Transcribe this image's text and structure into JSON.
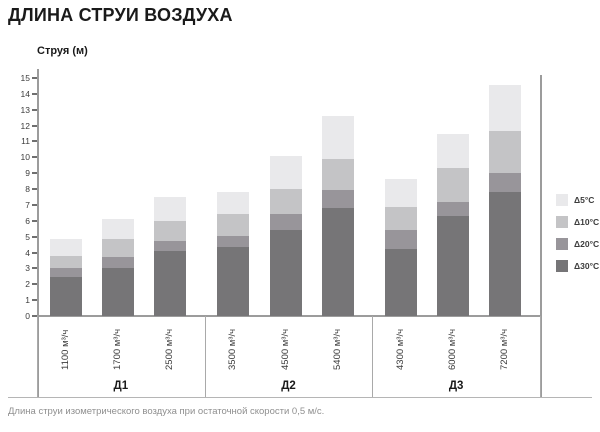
{
  "title": "ДЛИНА СТРУИ ВОЗДУХА",
  "y_axis_title": "Струя (м)",
  "caption": "Длина струи изометрического воздуха при остаточной скорости 0,5 м/с.",
  "legend": [
    {
      "label": "Δ5°C",
      "color": "#e9e9eb"
    },
    {
      "label": "Δ10°C",
      "color": "#c4c4c6"
    },
    {
      "label": "Δ20°C",
      "color": "#98959a"
    },
    {
      "label": "Δ30°C",
      "color": "#767577"
    }
  ],
  "chart_data": {
    "type": "bar",
    "stacked": true,
    "title": "ДЛИНА СТРУИ ВОЗДУХА",
    "ylabel": "Струя (м)",
    "ylim": [
      0,
      15
    ],
    "y_tick_step": 1,
    "grid": false,
    "legend_position": "right",
    "categories": [
      "1100 м³/ч",
      "1700 м³/ч",
      "2500 м³/ч",
      "3500 м³/ч",
      "4500 м³/ч",
      "5400 м³/ч",
      "4300 м³/ч",
      "6000 м³/ч",
      "7200 м³/ч"
    ],
    "groups": [
      {
        "label": "Д1",
        "categories": [
          "1100 м³/ч",
          "1700 м³/ч",
          "2500 м³/ч"
        ]
      },
      {
        "label": "Д2",
        "categories": [
          "3500 м³/ч",
          "4500 м³/ч",
          "5400 м³/ч"
        ]
      },
      {
        "label": "Д3",
        "categories": [
          "4300 м³/ч",
          "6000 м³/ч",
          "7200 м³/ч"
        ]
      }
    ],
    "series": [
      {
        "name": "Δ30°C",
        "color": "#767577",
        "values": [
          2.45,
          3.05,
          4.1,
          4.35,
          5.4,
          6.8,
          4.25,
          6.3,
          7.8
        ]
      },
      {
        "name": "Δ20°C",
        "color": "#98959a",
        "values": [
          0.6,
          0.65,
          0.65,
          0.7,
          1.0,
          1.15,
          1.15,
          0.9,
          1.2
        ]
      },
      {
        "name": "Δ10°C",
        "color": "#c4c4c6",
        "values": [
          0.7,
          1.15,
          1.25,
          1.35,
          1.6,
          1.95,
          1.5,
          2.1,
          2.65
        ]
      },
      {
        "name": "Δ5°C",
        "color": "#e9e9eb",
        "values": [
          1.1,
          1.25,
          1.5,
          1.4,
          2.1,
          2.7,
          1.75,
          2.2,
          2.9
        ]
      }
    ],
    "stack_totals": [
      4.85,
      6.1,
      7.5,
      7.8,
      10.1,
      12.6,
      8.65,
      11.5,
      14.55
    ]
  }
}
